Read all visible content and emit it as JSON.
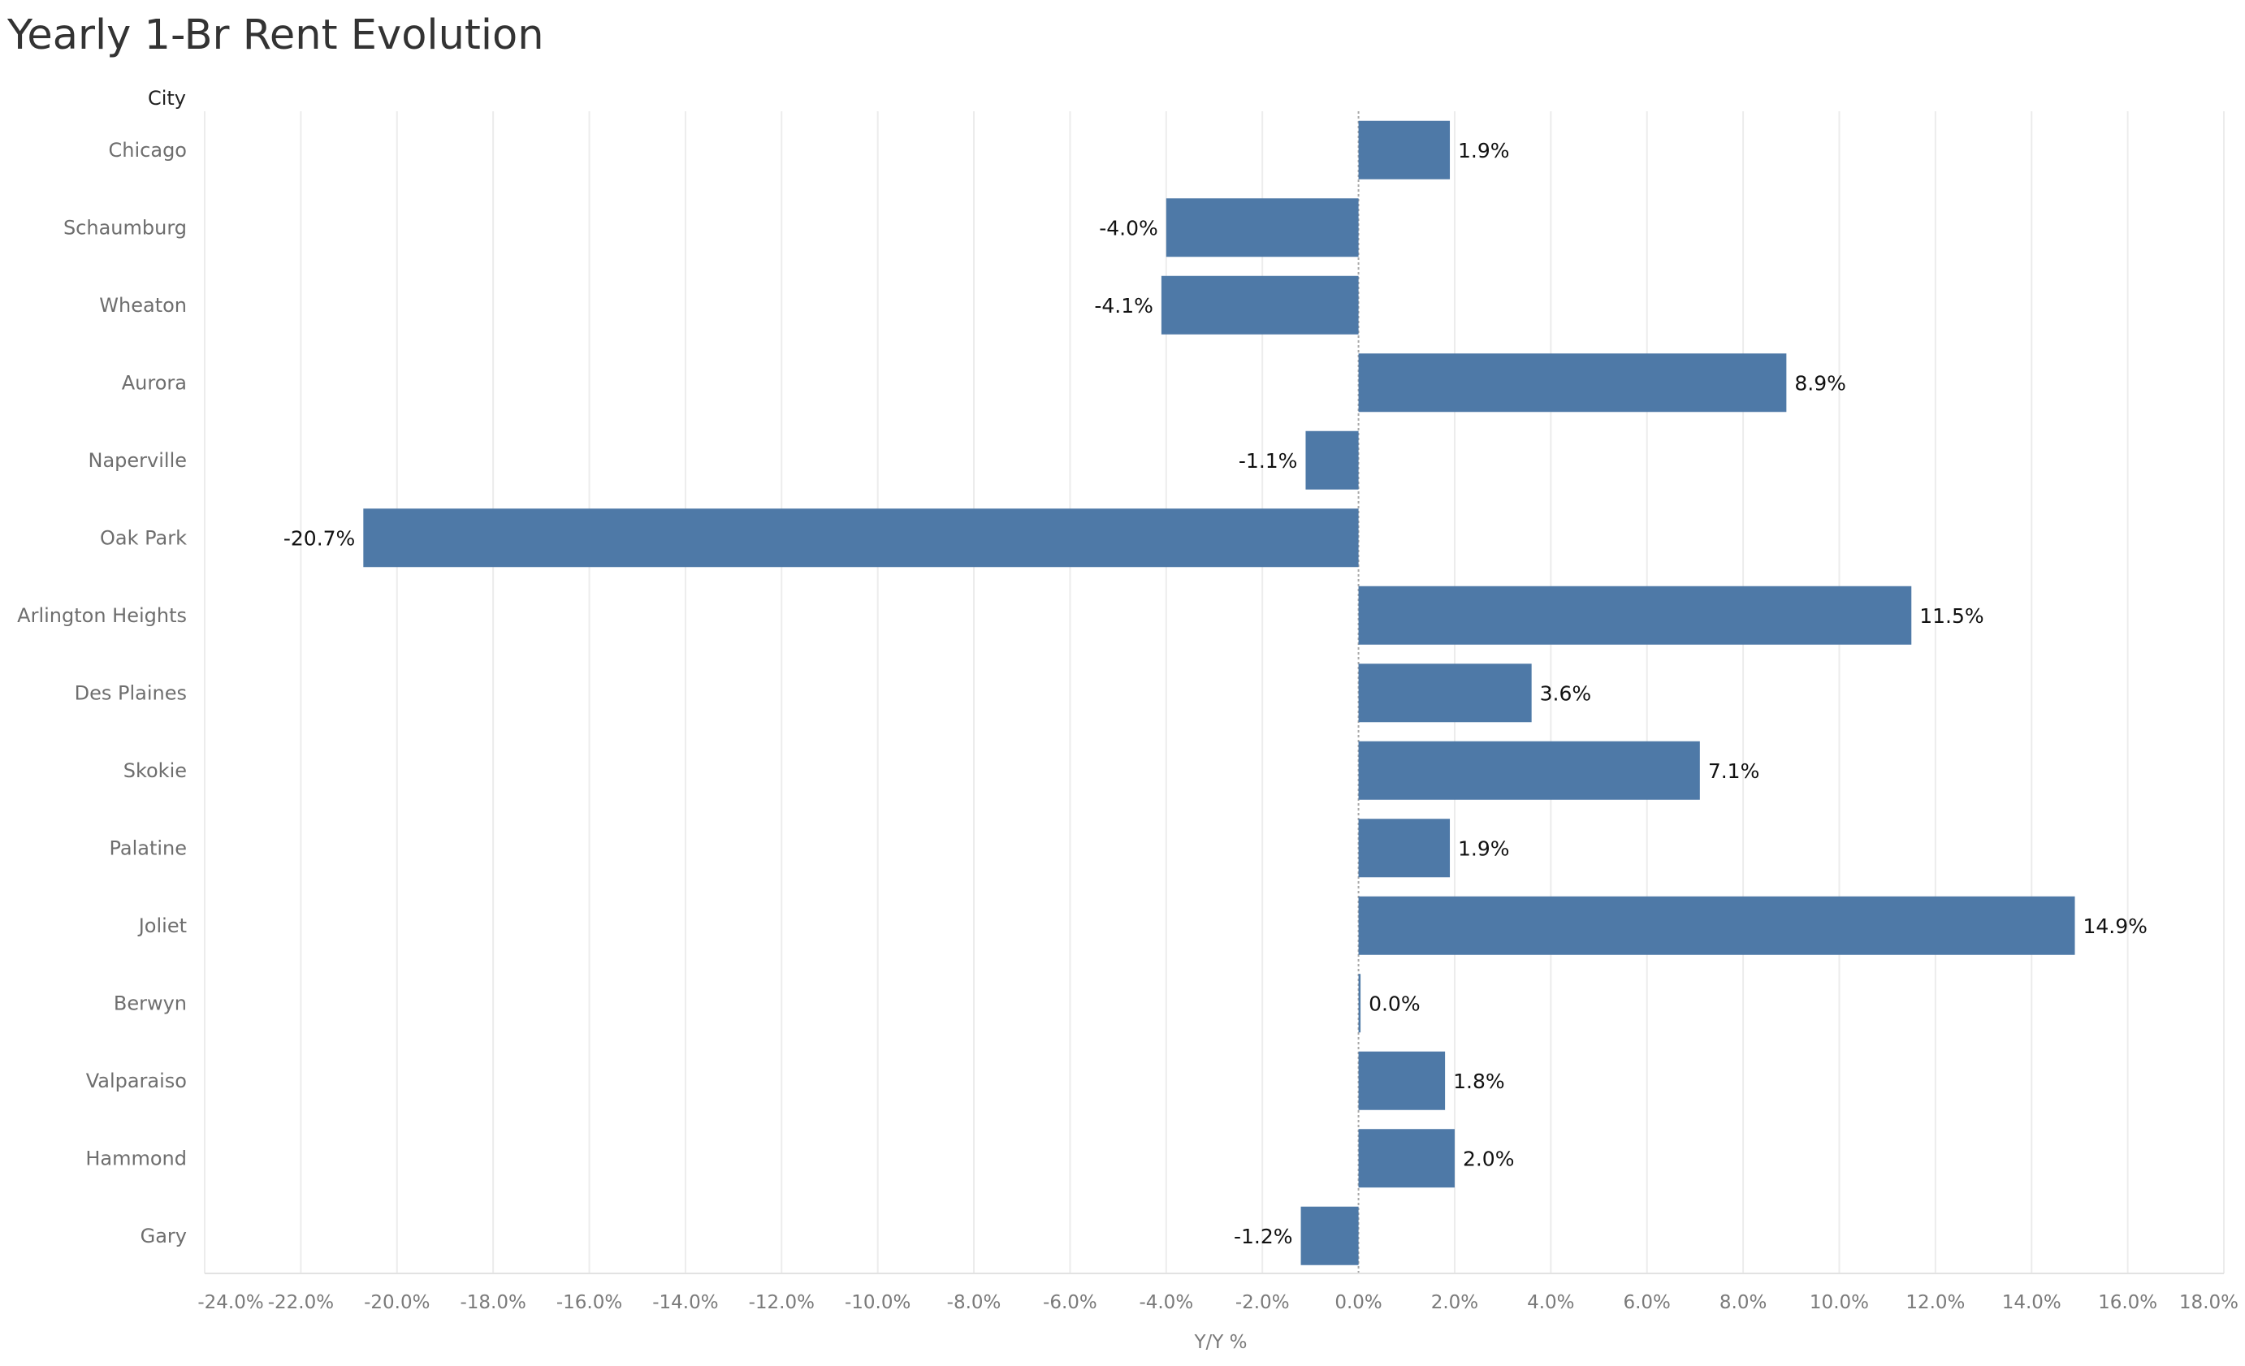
{
  "title": "Yearly 1-Br Rent Evolution",
  "colors": {
    "bar": "#4e79a7",
    "grid": "#ececec",
    "zero_line": "#a8a8a8"
  },
  "chart_data": {
    "type": "bar",
    "orientation": "horizontal",
    "row_header": "City",
    "xlabel": "Y/Y %",
    "xlim": [
      -24,
      18
    ],
    "x_ticks": [
      -24,
      -22,
      -20,
      -18,
      -16,
      -14,
      -12,
      -10,
      -8,
      -6,
      -4,
      -2,
      0,
      2,
      4,
      6,
      8,
      10,
      12,
      14,
      16,
      18
    ],
    "x_tick_labels": [
      "-24.0%",
      "-22.0%",
      "-20.0%",
      "-18.0%",
      "-16.0%",
      "-14.0%",
      "-12.0%",
      "-10.0%",
      "-8.0%",
      "-6.0%",
      "-4.0%",
      "-2.0%",
      "0.0%",
      "2.0%",
      "4.0%",
      "6.0%",
      "8.0%",
      "10.0%",
      "12.0%",
      "14.0%",
      "16.0%",
      "18.0%"
    ],
    "categories": [
      "Chicago",
      "Schaumburg",
      "Wheaton",
      "Aurora",
      "Naperville",
      "Oak Park",
      "Arlington Heights",
      "Des Plaines",
      "Skokie",
      "Palatine",
      "Joliet",
      "Berwyn",
      "Valparaiso",
      "Hammond",
      "Gary"
    ],
    "values": [
      1.9,
      -4.0,
      -4.1,
      8.9,
      -1.1,
      -20.7,
      11.5,
      3.6,
      7.1,
      1.9,
      14.9,
      0.0,
      1.8,
      2.0,
      -1.2
    ],
    "data_labels": [
      "1.9%",
      "-4.0%",
      "-4.1%",
      "8.9%",
      "-1.1%",
      "-20.7%",
      "11.5%",
      "3.6%",
      "7.1%",
      "1.9%",
      "14.9%",
      "0.0%",
      "1.8%",
      "2.0%",
      "-1.2%"
    ],
    "grid": true,
    "legend": "none"
  }
}
